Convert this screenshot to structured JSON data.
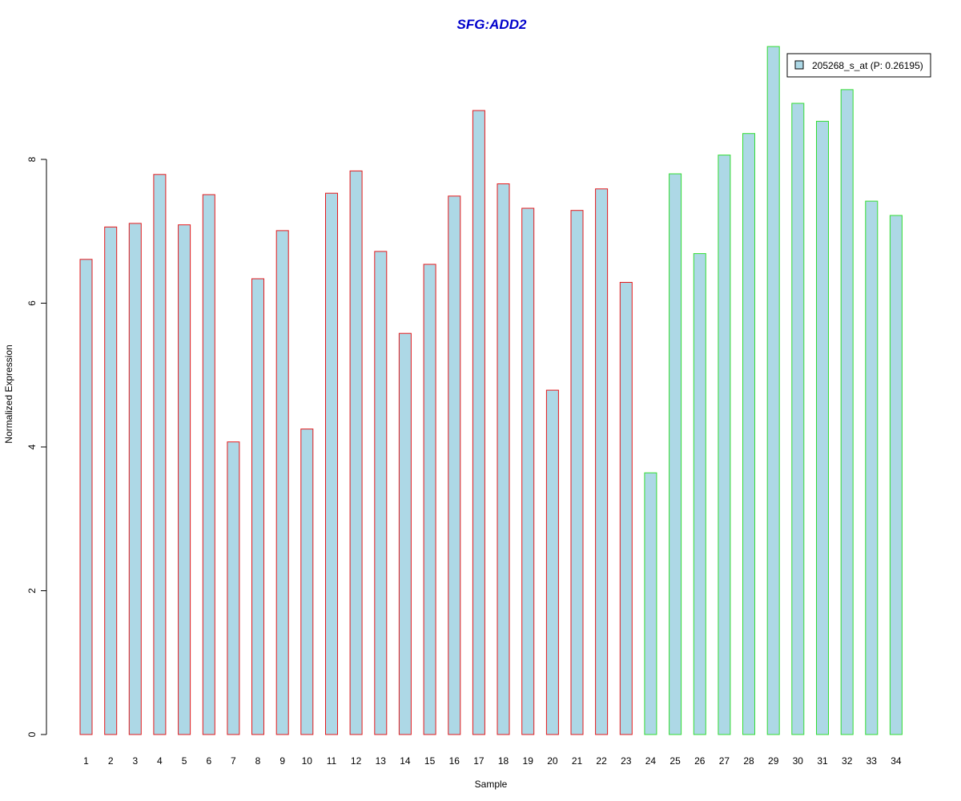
{
  "chart_data": {
    "type": "bar",
    "title": "SFG:ADD2",
    "xlabel": "Sample",
    "ylabel": "Normalized Expression",
    "categories": [
      "1",
      "2",
      "3",
      "4",
      "5",
      "6",
      "7",
      "8",
      "9",
      "10",
      "11",
      "12",
      "13",
      "14",
      "15",
      "16",
      "17",
      "18",
      "19",
      "20",
      "21",
      "22",
      "23",
      "24",
      "25",
      "26",
      "27",
      "28",
      "29",
      "30",
      "31",
      "32",
      "33",
      "34"
    ],
    "series": [
      {
        "name": "205268_s_at (P: 0.26195)",
        "values": [
          6.61,
          7.06,
          7.11,
          7.79,
          7.09,
          7.51,
          4.07,
          6.34,
          7.01,
          4.25,
          7.53,
          7.84,
          6.72,
          5.58,
          6.54,
          7.49,
          8.68,
          7.66,
          7.32,
          4.79,
          7.29,
          7.59,
          6.29,
          3.64,
          7.8,
          6.69,
          8.06,
          8.36,
          9.57,
          8.78,
          8.53,
          8.97,
          7.42,
          7.22
        ]
      }
    ],
    "group_of_bar": [
      1,
      1,
      1,
      1,
      1,
      1,
      1,
      1,
      1,
      1,
      1,
      1,
      1,
      1,
      1,
      1,
      1,
      1,
      1,
      1,
      1,
      1,
      1,
      2,
      2,
      2,
      2,
      2,
      2,
      2,
      2,
      2,
      2,
      2
    ],
    "colors": {
      "bar_fill": "#add8e6",
      "group_1_border": "#e41a1c",
      "group_2_border": "#33dd33",
      "title": "#0000cc"
    },
    "yticks": [
      0,
      2,
      4,
      6,
      8
    ],
    "ylim": [
      0,
      9.57
    ],
    "legend_position": "top-right",
    "grid": false
  }
}
